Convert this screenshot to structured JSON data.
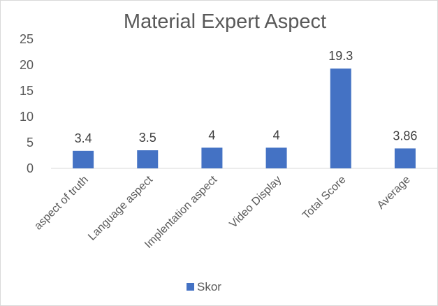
{
  "chart_data": {
    "type": "bar",
    "title": "Material Expert Aspect",
    "categories": [
      "aspect of truth",
      "Language aspect",
      "Implentation aspect",
      "Video Display",
      "Total Score",
      "Average"
    ],
    "series": [
      {
        "name": "Skor",
        "values": [
          3.4,
          3.5,
          4,
          4,
          19.3,
          3.86
        ],
        "labels": [
          "3.4",
          "3.5",
          "4",
          "4",
          "19.3",
          "3.86"
        ],
        "color": "#4472c4"
      }
    ],
    "ylim": [
      0,
      25
    ],
    "yticks": [
      0,
      5,
      10,
      15,
      20,
      25
    ],
    "grid": false,
    "legend": "bottom"
  }
}
